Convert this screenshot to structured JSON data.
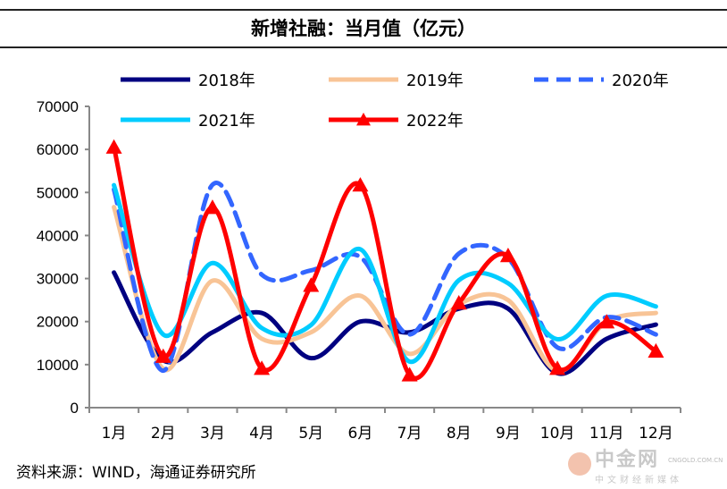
{
  "title": "新增社融：当月值（亿元）",
  "source": "资料来源：WIND，海通证券研究所",
  "watermark": {
    "name": "中金网",
    "subtitle": "中文财经新媒体",
    "url": "CNGOLD.COM.CN"
  },
  "chart_data": {
    "type": "line",
    "title": "新增社融：当月值（亿元）",
    "categories": [
      "1月",
      "2月",
      "3月",
      "4月",
      "5月",
      "6月",
      "7月",
      "8月",
      "9月",
      "10月",
      "11月",
      "12月"
    ],
    "yticks": [
      "0",
      "10000",
      "20000",
      "30000",
      "40000",
      "50000",
      "60000",
      "70000"
    ],
    "ylim": [
      0,
      70000
    ],
    "grid": false,
    "legend": "top",
    "series": [
      {
        "name": "2018年",
        "color": "#000080",
        "dash": false,
        "marker": "none",
        "values": [
          31400,
          11000,
          17500,
          22000,
          11500,
          20000,
          17500,
          23000,
          23000,
          8000,
          16000,
          19300
        ]
      },
      {
        "name": "2019年",
        "color": "#f8c496",
        "dash": false,
        "marker": "none",
        "values": [
          46600,
          9000,
          29500,
          16000,
          17500,
          26000,
          12500,
          24000,
          25000,
          8500,
          20000,
          22000
        ]
      },
      {
        "name": "2020年",
        "color": "#3366ff",
        "dash": true,
        "marker": "none",
        "values": [
          50700,
          8600,
          51800,
          30900,
          31900,
          35000,
          17000,
          35800,
          34700,
          14000,
          21000,
          17000
        ]
      },
      {
        "name": "2021年",
        "color": "#00ccff",
        "dash": false,
        "marker": "none",
        "values": [
          51700,
          17000,
          33600,
          18500,
          19200,
          36800,
          10700,
          29600,
          28900,
          15900,
          26000,
          23500
        ]
      },
      {
        "name": "2022年",
        "color": "#ff0000",
        "dash": false,
        "marker": "triangle",
        "values": [
          60500,
          11900,
          46500,
          9100,
          28400,
          51700,
          7600,
          24300,
          35300,
          9100,
          19900,
          13100
        ]
      }
    ]
  }
}
